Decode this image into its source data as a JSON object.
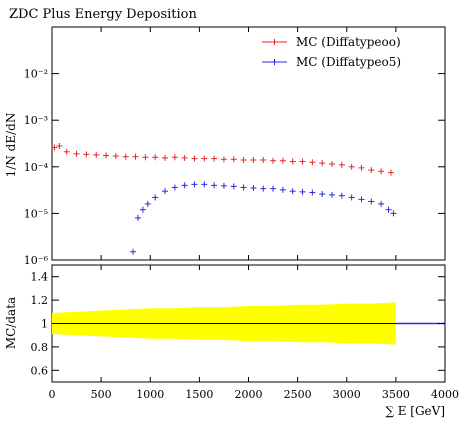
{
  "title": "ZDC Plus Energy Deposition",
  "chart_data": {
    "type": "scatter",
    "title": "ZDC Plus Energy Deposition",
    "xlabel": "∑ E [GeV]",
    "ylabel": "1/N dE/dN",
    "ratio_ylabel": "MC/data",
    "xlim": [
      0,
      4000
    ],
    "ylim_log": [
      1e-06,
      0.1
    ],
    "ratio_ylim": [
      0.5,
      1.5
    ],
    "x_ticks": [
      0,
      500,
      1000,
      1500,
      2000,
      2500,
      3000,
      3500,
      4000
    ],
    "y_ticks": [
      {
        "label": "10⁻⁶",
        "value": 1e-06
      },
      {
        "label": "10⁻⁵",
        "value": 1e-05
      },
      {
        "label": "10⁻⁴",
        "value": 0.0001
      },
      {
        "label": "10⁻³",
        "value": 0.001
      },
      {
        "label": "10⁻²",
        "value": 0.01
      }
    ],
    "ratio_ticks": [
      {
        "label": "0.6",
        "value": 0.6
      },
      {
        "label": "0.8",
        "value": 0.8
      },
      {
        "label": "1",
        "value": 1.0
      },
      {
        "label": "1.2",
        "value": 1.2
      },
      {
        "label": "1.4",
        "value": 1.4
      }
    ],
    "legend_position": "top-right",
    "grid": false,
    "series": [
      {
        "name": "MC (Diffatypeoo)",
        "color": "#e8242a",
        "x": [
          25,
          75,
          150,
          250,
          350,
          450,
          550,
          650,
          750,
          850,
          950,
          1050,
          1150,
          1250,
          1350,
          1450,
          1550,
          1650,
          1750,
          1850,
          1950,
          2050,
          2150,
          2250,
          2350,
          2450,
          2550,
          2650,
          2750,
          2850,
          2950,
          3050,
          3150,
          3250,
          3350,
          3450
        ],
        "y": [
          0.00026,
          0.00028,
          0.00021,
          0.00019,
          0.000185,
          0.00018,
          0.000175,
          0.00017,
          0.000165,
          0.000165,
          0.00016,
          0.00016,
          0.000155,
          0.00016,
          0.000155,
          0.00015,
          0.00015,
          0.00015,
          0.000145,
          0.000145,
          0.00014,
          0.00014,
          0.00014,
          0.000135,
          0.000135,
          0.00013,
          0.00013,
          0.000125,
          0.00012,
          0.000115,
          0.00011,
          0.0001,
          9.5e-05,
          8.5e-05,
          8e-05,
          7.5e-05
        ]
      },
      {
        "name": "MC (Diffatypeo5)",
        "color": "#2a2ae0",
        "x": [
          825,
          875,
          925,
          975,
          1050,
          1150,
          1250,
          1350,
          1450,
          1550,
          1650,
          1750,
          1850,
          1950,
          2050,
          2150,
          2250,
          2350,
          2450,
          2550,
          2650,
          2750,
          2850,
          2950,
          3050,
          3150,
          3250,
          3350,
          3425,
          3475
        ],
        "y": [
          1.5e-06,
          8e-06,
          1.2e-05,
          1.6e-05,
          2.2e-05,
          3e-05,
          3.6e-05,
          4e-05,
          4.2e-05,
          4.2e-05,
          4e-05,
          3.9e-05,
          3.8e-05,
          3.6e-05,
          3.5e-05,
          3.4e-05,
          3.4e-05,
          3.2e-05,
          3e-05,
          2.9e-05,
          2.8e-05,
          2.6e-05,
          2.5e-05,
          2.4e-05,
          2.2e-05,
          2e-05,
          1.8e-05,
          1.6e-05,
          1.2e-05,
          1e-05
        ]
      }
    ],
    "ratio_band": {
      "color": "#ffff00",
      "x": [
        0,
        250,
        500,
        750,
        1000,
        1250,
        1500,
        1750,
        2000,
        2250,
        2500,
        2750,
        3000,
        3250,
        3500
      ],
      "low": [
        0.91,
        0.9,
        0.89,
        0.88,
        0.87,
        0.87,
        0.86,
        0.86,
        0.85,
        0.85,
        0.84,
        0.84,
        0.83,
        0.83,
        0.82
      ],
      "high": [
        1.09,
        1.1,
        1.11,
        1.12,
        1.13,
        1.13,
        1.14,
        1.14,
        1.15,
        1.15,
        1.16,
        1.16,
        1.17,
        1.17,
        1.18
      ]
    },
    "ratio_line_color": "#2a2ae0"
  }
}
